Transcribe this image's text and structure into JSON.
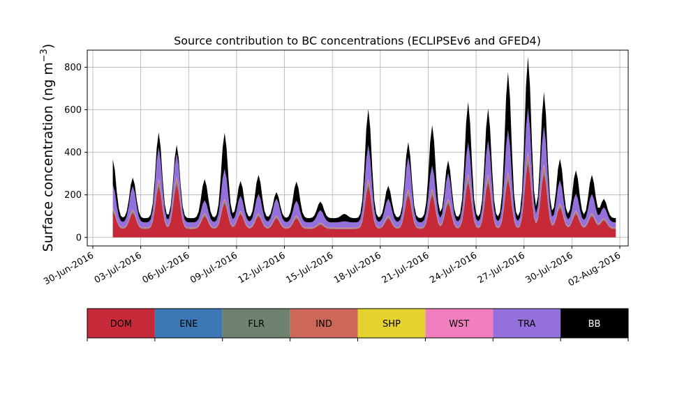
{
  "chart_data": {
    "type": "area",
    "stacked": true,
    "title": "Source contribution to BC concentrations (ECLIPSEv6 and GFED4)",
    "ylabel": "Surface concentration (ng m",
    "ylabel_unit_exponent": "−3",
    "ylabel_close": ")",
    "xlim": [
      "2016-06-30",
      "2016-08-02"
    ],
    "ylim": [
      -40,
      880
    ],
    "yticks": [
      0,
      200,
      400,
      600,
      800
    ],
    "xticks": [
      "30-Jun-2016",
      "03-Jul-2016",
      "06-Jul-2016",
      "09-Jul-2016",
      "12-Jul-2016",
      "15-Jul-2016",
      "18-Jul-2016",
      "21-Jul-2016",
      "24-Jul-2016",
      "27-Jul-2016",
      "30-Jul-2016",
      "02-Aug-2016"
    ],
    "grid": true,
    "legend_placement": "below",
    "series": [
      {
        "name": "DOM",
        "color": "#c62a38",
        "peaks": [
          [
            "2016-07-01T06:00",
            120
          ],
          [
            "2016-07-02T12:00",
            115
          ],
          [
            "2016-07-04T03:00",
            240
          ],
          [
            "2016-07-05T06:00",
            250
          ],
          [
            "2016-07-07T00:00",
            100
          ],
          [
            "2016-07-08T06:00",
            160
          ],
          [
            "2016-07-09T06:00",
            110
          ],
          [
            "2016-07-10T09:00",
            100
          ],
          [
            "2016-07-11T12:00",
            90
          ],
          [
            "2016-07-12T18:00",
            90
          ],
          [
            "2016-07-14T06:00",
            60
          ],
          [
            "2016-07-15T18:00",
            30
          ],
          [
            "2016-07-17T06:00",
            240
          ],
          [
            "2016-07-18T12:00",
            90
          ],
          [
            "2016-07-19T18:00",
            200
          ],
          [
            "2016-07-21T06:00",
            200
          ],
          [
            "2016-07-22T06:00",
            160
          ],
          [
            "2016-07-23T12:00",
            260
          ],
          [
            "2016-07-24T18:00",
            260
          ],
          [
            "2016-07-26T00:00",
            270
          ],
          [
            "2016-07-27T06:00",
            350
          ],
          [
            "2016-07-28T06:00",
            300
          ],
          [
            "2016-07-29T06:00",
            140
          ],
          [
            "2016-07-30T06:00",
            110
          ],
          [
            "2016-07-31T06:00",
            100
          ],
          [
            "2016-08-01T00:00",
            80
          ]
        ],
        "baseline": 40
      },
      {
        "name": "ENE",
        "color": "#3b78b5",
        "fraction_of_dom": 0.03
      },
      {
        "name": "FLR",
        "color": "#6f8270",
        "fraction_of_dom": 0.03
      },
      {
        "name": "IND",
        "color": "#cd6757",
        "fraction_of_dom": 0.06
      },
      {
        "name": "SHP",
        "color": "#e6d22e",
        "fraction_of_dom": 0.01
      },
      {
        "name": "WST",
        "color": "#f17fbe",
        "fraction_of_dom": 0.01
      },
      {
        "name": "TRA",
        "color": "#9370db",
        "peaks": [
          [
            "2016-07-01T06:00",
            110
          ],
          [
            "2016-07-02T12:00",
            110
          ],
          [
            "2016-07-04T03:00",
            150
          ],
          [
            "2016-07-05T06:00",
            110
          ],
          [
            "2016-07-07T00:00",
            60
          ],
          [
            "2016-07-08T06:00",
            140
          ],
          [
            "2016-07-09T06:00",
            70
          ],
          [
            "2016-07-10T09:00",
            90
          ],
          [
            "2016-07-11T12:00",
            80
          ],
          [
            "2016-07-12T18:00",
            70
          ],
          [
            "2016-07-14T06:00",
            60
          ],
          [
            "2016-07-15T18:00",
            30
          ],
          [
            "2016-07-17T06:00",
            160
          ],
          [
            "2016-07-18T12:00",
            80
          ],
          [
            "2016-07-19T18:00",
            150
          ],
          [
            "2016-07-21T06:00",
            110
          ],
          [
            "2016-07-22T06:00",
            120
          ],
          [
            "2016-07-23T12:00",
            150
          ],
          [
            "2016-07-24T18:00",
            160
          ],
          [
            "2016-07-26T00:00",
            200
          ],
          [
            "2016-07-27T06:00",
            210
          ],
          [
            "2016-07-28T06:00",
            180
          ],
          [
            "2016-07-29T06:00",
            110
          ],
          [
            "2016-07-30T06:00",
            80
          ],
          [
            "2016-07-31T06:00",
            90
          ],
          [
            "2016-08-01T00:00",
            50
          ]
        ],
        "baseline": 25
      },
      {
        "name": "BB",
        "color": "#000000",
        "peaks": [
          [
            "2016-07-01T06:00",
            120
          ],
          [
            "2016-07-02T12:00",
            40
          ],
          [
            "2016-07-04T03:00",
            70
          ],
          [
            "2016-07-05T06:00",
            40
          ],
          [
            "2016-07-07T00:00",
            100
          ],
          [
            "2016-07-08T06:00",
            170
          ],
          [
            "2016-07-09T06:00",
            70
          ],
          [
            "2016-07-10T09:00",
            90
          ],
          [
            "2016-07-11T12:00",
            30
          ],
          [
            "2016-07-12T18:00",
            90
          ],
          [
            "2016-07-14T06:00",
            40
          ],
          [
            "2016-07-15T18:00",
            35
          ],
          [
            "2016-07-17T06:00",
            170
          ],
          [
            "2016-07-18T12:00",
            60
          ],
          [
            "2016-07-19T18:00",
            70
          ],
          [
            "2016-07-21T06:00",
            190
          ],
          [
            "2016-07-22T06:00",
            60
          ],
          [
            "2016-07-23T12:00",
            190
          ],
          [
            "2016-07-24T18:00",
            150
          ],
          [
            "2016-07-26T00:00",
            270
          ],
          [
            "2016-07-27T06:00",
            240
          ],
          [
            "2016-07-28T06:00",
            160
          ],
          [
            "2016-07-29T06:00",
            100
          ],
          [
            "2016-07-30T06:00",
            110
          ],
          [
            "2016-07-31T06:00",
            90
          ],
          [
            "2016-08-01T00:00",
            40
          ]
        ],
        "baseline": 20
      }
    ],
    "data_range": [
      "2016-07-01T06:00",
      "2016-08-01T18:00"
    ]
  },
  "legend": [
    {
      "label": "DOM",
      "color": "#c62a38",
      "text_color": "#000000"
    },
    {
      "label": "ENE",
      "color": "#3b78b5",
      "text_color": "#000000"
    },
    {
      "label": "FLR",
      "color": "#6f8270",
      "text_color": "#000000"
    },
    {
      "label": "IND",
      "color": "#cd6757",
      "text_color": "#000000"
    },
    {
      "label": "SHP",
      "color": "#e6d22e",
      "text_color": "#000000"
    },
    {
      "label": "WST",
      "color": "#f17fbe",
      "text_color": "#000000"
    },
    {
      "label": "TRA",
      "color": "#9370db",
      "text_color": "#000000"
    },
    {
      "label": "BB",
      "color": "#000000",
      "text_color": "#ffffff"
    }
  ]
}
